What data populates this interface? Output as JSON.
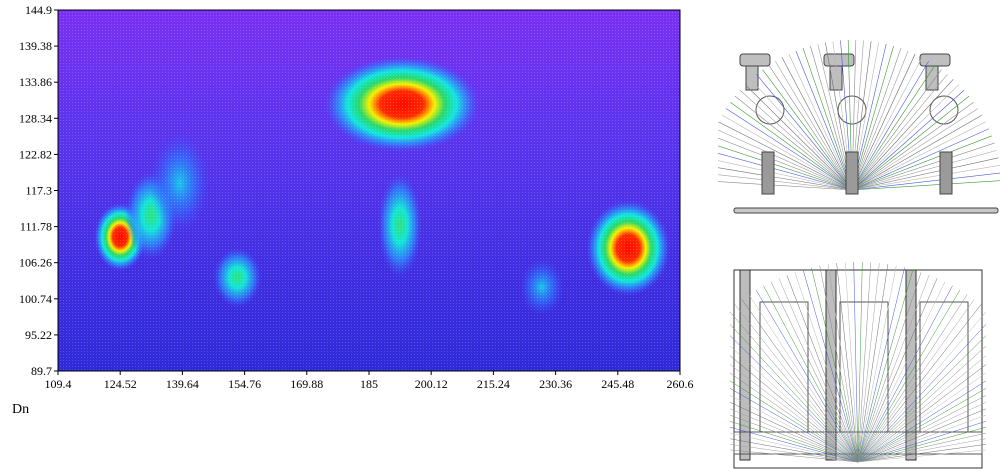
{
  "chart_data": {
    "type": "heatmap",
    "title": "",
    "xlabel": "Dn",
    "ylabel": "",
    "xlim": [
      109.4,
      260.6
    ],
    "ylim": [
      89.7,
      144.9
    ],
    "xticks": [
      "109.4",
      "124.52",
      "139.64",
      "154.76",
      "169.88",
      "185",
      "200.12",
      "215.24",
      "230.36",
      "245.48",
      "260.6"
    ],
    "yticks": [
      "144.9",
      "139.38",
      "133.86",
      "128.34",
      "122.82",
      "117.3",
      "111.78",
      "106.26",
      "100.74",
      "95.22",
      "89.7"
    ],
    "colormap": [
      "#1e1ed2",
      "#4a2ee6",
      "#7a35f0",
      "#2aa0ff",
      "#10e8d8",
      "#22d66a",
      "#e8f000",
      "#ff1a00"
    ],
    "hotspots": [
      {
        "x": 124.5,
        "y": 110.2,
        "intensity": 1.0
      },
      {
        "x": 132.0,
        "y": 113.5,
        "intensity": 0.62
      },
      {
        "x": 139.0,
        "y": 118.5,
        "intensity": 0.48
      },
      {
        "x": 153.0,
        "y": 104.0,
        "intensity": 0.72
      },
      {
        "x": 193.0,
        "y": 130.5,
        "intensity": 1.0
      },
      {
        "x": 192.5,
        "y": 112.0,
        "intensity": 0.62
      },
      {
        "x": 227.0,
        "y": 102.5,
        "intensity": 0.45
      },
      {
        "x": 248.0,
        "y": 108.5,
        "intensity": 1.0
      }
    ],
    "grid": false
  },
  "figures": {
    "top_view_name": "top-schematic",
    "bottom_view_name": "bottom-schematic"
  }
}
